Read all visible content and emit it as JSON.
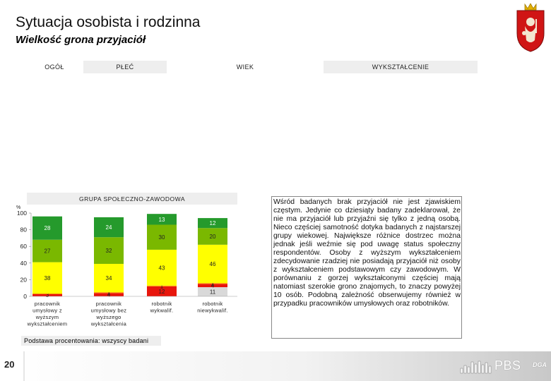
{
  "page": {
    "title": "Sytuacja osobista i rodzinna",
    "subtitle": "Wielkość grona przyjaciół",
    "page_number": "20",
    "brand": "PBS",
    "brand_suffix": "DGA",
    "footnote": "Podstawa procentowania: wszyscy badani"
  },
  "headers": {
    "ogol": "OGÓŁ",
    "plec": "PŁEĆ",
    "wiek": "WIEK",
    "wyksztalcenie": "WYKSZTAŁCENIE",
    "grupa": "GRUPA SPOŁECZNO-ZAWODOWA"
  },
  "commentary": "Wśród badanych brak przyjaciół nie jest zjawiskiem częstym. Jedynie co dziesiąty badany zadeklarował, że nie ma przyjaciół lub przyjaźni się tylko z jedną osobą. Nieco częściej samotność dotyka badanych z najstarszej grupy wiekowej. Największe różnice dostrzec można jednak jeśli weźmie się pod uwagę status społeczny respondentów. Osoby z wyższym wykształceniem zdecydowanie rzadziej nie posiadają przyjaciół niż osoby z wykształceniem podstawowym czy zawodowym. W porównaniu z gorzej wykształconymi częściej mają natomiast szerokie grono znajomych, to znaczy powyżej 10 osób. Podobną zależność obserwujemy również w przypadku pracowników umysłowych oraz robotników.",
  "chart_data": {
    "type": "bar",
    "stacked": true,
    "title": "GRUPA SPOŁECZNO-ZAWODOWA",
    "ylabel": "%",
    "ylim": [
      0,
      100
    ],
    "yticks": [
      "0",
      "20",
      "40",
      "60",
      "80",
      "100"
    ],
    "categories": [
      [
        "pracownik",
        "umysłowy z",
        "wyższym",
        "wykształceniem"
      ],
      [
        "pracownik",
        "umysłowy bez",
        "wyższego",
        "wykształcenia"
      ],
      [
        "robotnik",
        "wykwalif."
      ],
      [
        "robotnik",
        "niewykwalif."
      ]
    ],
    "series": [
      {
        "color": "#d9d9d9",
        "values": [
          0,
          0,
          0,
          11
        ],
        "labels": [
          "",
          "",
          "",
          "11"
        ]
      },
      {
        "color": "#e8160c",
        "values": [
          3,
          4,
          12,
          4
        ],
        "labels": [
          "3",
          "4",
          "12",
          "4"
        ]
      },
      {
        "color": "#ff9a00",
        "values": [
          0,
          1,
          1,
          1
        ],
        "labels": [
          "",
          "1",
          "1",
          "1"
        ]
      },
      {
        "color": "#ffff00",
        "values": [
          38,
          34,
          43,
          46
        ],
        "labels": [
          "38",
          "34",
          "43",
          "46"
        ]
      },
      {
        "color": "#7ab800",
        "values": [
          27,
          32,
          30,
          20
        ],
        "labels": [
          "27",
          "32",
          "30",
          "20"
        ]
      },
      {
        "color": "#259a2c",
        "values": [
          28,
          24,
          13,
          12
        ],
        "labels": [
          "28",
          "24",
          "13",
          "12"
        ]
      }
    ]
  }
}
